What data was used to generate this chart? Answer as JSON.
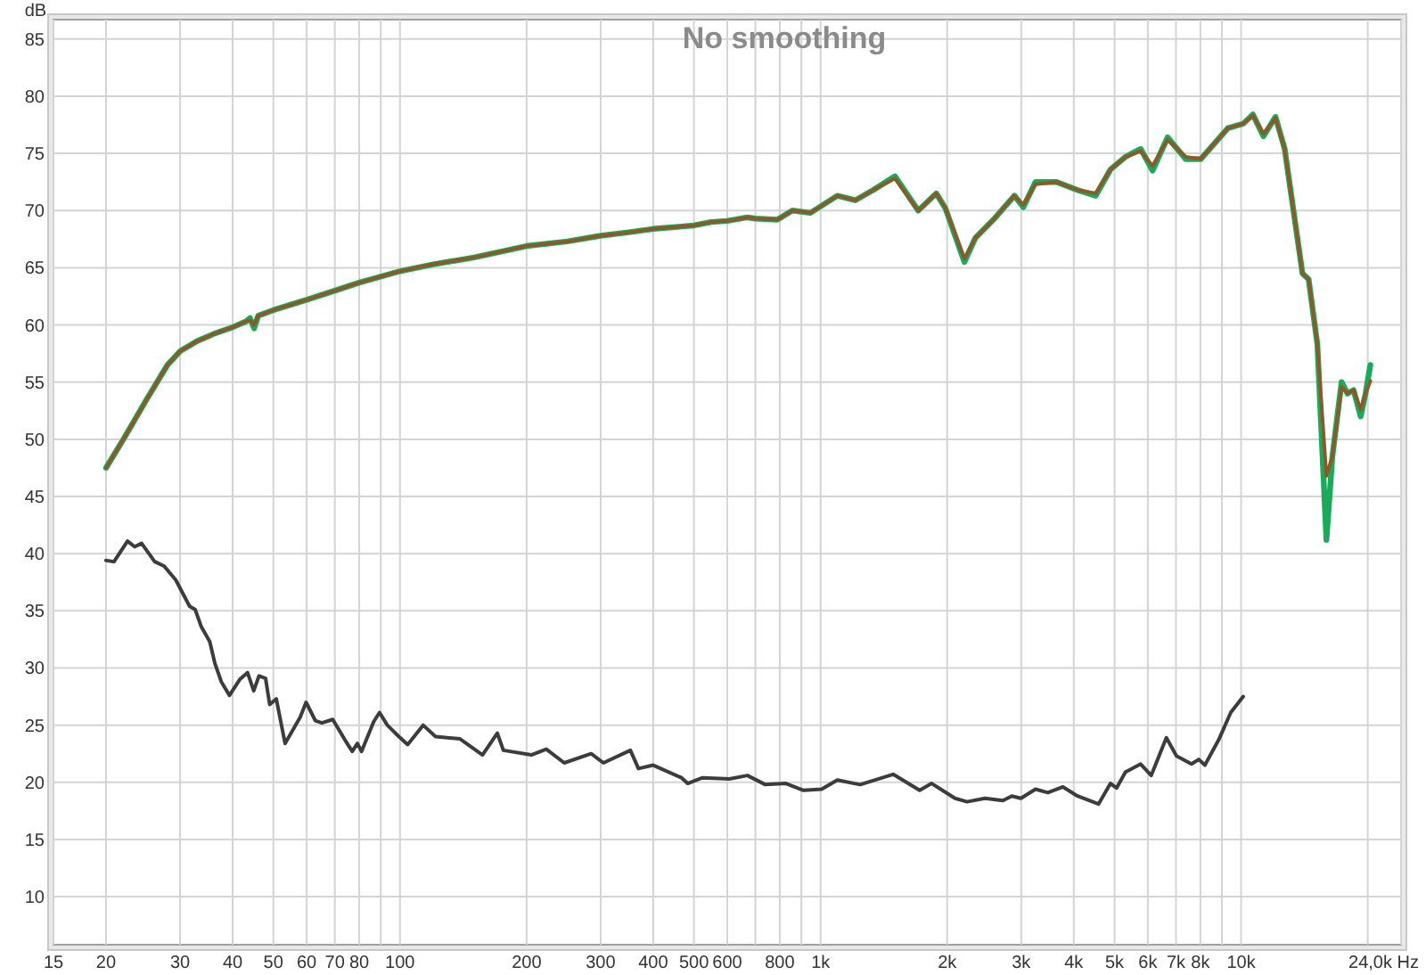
{
  "chart_data": {
    "type": "line",
    "title": "No smoothing",
    "ylabel": "dB",
    "log": "x",
    "grid": true,
    "xlim": [
      15,
      24000
    ],
    "ylim": [
      5.8,
      86.7
    ],
    "xticks": [
      15,
      20,
      30,
      40,
      50,
      60,
      70,
      80,
      {
        "value": 90,
        "label": null
      },
      100,
      200,
      300,
      400,
      500,
      600,
      {
        "value": 700,
        "label": null
      },
      800,
      {
        "value": 900,
        "label": null
      },
      {
        "value": 1000,
        "label": "1k"
      },
      {
        "value": 2000,
        "label": "2k"
      },
      {
        "value": 3000,
        "label": "3k"
      },
      {
        "value": 4000,
        "label": "4k"
      },
      {
        "value": 5000,
        "label": "5k"
      },
      {
        "value": 6000,
        "label": "6k"
      },
      {
        "value": 7000,
        "label": "7k"
      },
      {
        "value": 8000,
        "label": "8k"
      },
      {
        "value": 9000,
        "label": null
      },
      {
        "value": 10000,
        "label": "10k"
      },
      {
        "value": 20000,
        "label": null
      },
      {
        "value": 24000,
        "label": "24,0k Hz"
      }
    ],
    "yticks": [
      10,
      15,
      20,
      25,
      30,
      35,
      40,
      45,
      50,
      55,
      60,
      65,
      70,
      75,
      80,
      85
    ],
    "series": [
      {
        "color": "#1aaa5a",
        "x": [
          20,
          22,
          25,
          28,
          30,
          33,
          36,
          40,
          43,
          44,
          45,
          46,
          50,
          60,
          70,
          80,
          100,
          120,
          150,
          200,
          250,
          300,
          350,
          400,
          500,
          549,
          600,
          670,
          700,
          789,
          857,
          946,
          1096,
          1209,
          1334,
          1503,
          1707,
          1884,
          1981,
          2198,
          2333,
          2575,
          2890,
          3035,
          3244,
          3640,
          4084,
          4508,
          4891,
          5309,
          5768,
          6157,
          6686,
          7381,
          8014,
          9295,
          10115,
          10664,
          11300,
          12070,
          12690,
          13990,
          14470,
          15180,
          15950,
          16480,
          17330,
          17900,
          18510,
          19240,
          19760,
          20290
        ],
        "values": [
          47.5,
          50,
          53.5,
          56.5,
          57.7,
          58.6,
          59.2,
          59.8,
          60.3,
          60.6,
          59.7,
          60.8,
          61.3,
          62.2,
          63,
          63.7,
          64.7,
          65.3,
          65.9,
          66.9,
          67.3,
          67.8,
          68.1,
          68.4,
          68.7,
          69,
          69.1,
          69.4,
          69.3,
          69.2,
          70,
          69.8,
          71.3,
          70.9,
          71.8,
          73,
          70,
          71.5,
          70.2,
          65.5,
          67.6,
          69.2,
          71.3,
          70.3,
          72.5,
          72.5,
          71.8,
          71.3,
          73.6,
          74.7,
          75.4,
          73.5,
          76.4,
          74.5,
          74.5,
          77.2,
          77.6,
          78.4,
          76.5,
          78.2,
          75.4,
          64.5,
          64,
          58.3,
          41.2,
          48.5,
          55,
          54,
          54.3,
          52,
          54,
          56.5
        ]
      },
      {
        "color": "#8b5a2b",
        "x": [
          20,
          22,
          25,
          28,
          30,
          33,
          36,
          40,
          43,
          44,
          45,
          46,
          50,
          60,
          70,
          80,
          100,
          120,
          150,
          200,
          250,
          300,
          350,
          400,
          500,
          549,
          600,
          670,
          700,
          789,
          857,
          946,
          1096,
          1209,
          1334,
          1503,
          1707,
          1884,
          1981,
          2198,
          2333,
          2575,
          2890,
          3035,
          3244,
          3640,
          4084,
          4508,
          4891,
          5309,
          5768,
          6157,
          6686,
          7381,
          8014,
          9295,
          10115,
          10664,
          11300,
          12070,
          12690,
          13990,
          14470,
          15180,
          15950,
          16480,
          17330,
          17900,
          18510,
          19240,
          19760,
          20290
        ],
        "values": [
          47.5,
          50,
          53.5,
          56.5,
          57.7,
          58.6,
          59.2,
          59.8,
          60.3,
          60.4,
          60,
          60.8,
          61.3,
          62.2,
          63,
          63.7,
          64.7,
          65.3,
          65.9,
          66.9,
          67.3,
          67.8,
          68.1,
          68.4,
          68.7,
          69,
          69.1,
          69.4,
          69.3,
          69.2,
          70,
          69.8,
          71.3,
          70.9,
          71.8,
          72.8,
          70,
          71.5,
          70.2,
          65.8,
          67.6,
          69.2,
          71.3,
          70.5,
          72.3,
          72.5,
          71.8,
          71.5,
          73.6,
          74.7,
          75.2,
          73.9,
          76.2,
          74.7,
          74.5,
          77.2,
          77.6,
          78.3,
          76.7,
          78.1,
          75.4,
          64.5,
          64,
          58.3,
          46.8,
          48.5,
          54.6,
          54,
          54.3,
          52.6,
          54,
          55.1
        ]
      },
      {
        "color": "#3c3c3c",
        "x": [
          20,
          20.9,
          22.5,
          23.4,
          24.3,
          26.1,
          27.5,
          29.3,
          31.6,
          32.6,
          33.7,
          35.3,
          36.3,
          37.6,
          39.3,
          41.6,
          43.4,
          44.9,
          46.2,
          47.9,
          49,
          50.8,
          53.3,
          57.9,
          59.8,
          62.9,
          65.2,
          69.2,
          74,
          77,
          79.2,
          81,
          86.6,
          89.4,
          93.3,
          99.4,
          104.3,
          113.5,
          121.5,
          138.9,
          157.1,
          170.4,
          176.1,
          205.2,
          222.8,
          245.8,
          284.7,
          304.6,
          353,
          369,
          400,
          467,
          483,
          524,
          607,
          670,
          739,
          827,
          911,
          1006,
          1096,
          1242,
          1488,
          1720,
          1837,
          2088,
          2230,
          2460,
          2713,
          2850,
          2995,
          3244,
          3470,
          3770,
          4084,
          4580,
          4891,
          5056,
          5309,
          5768,
          6113,
          6640,
          7020,
          7620,
          7930,
          8200,
          8840,
          9447,
          10115
        ],
        "values": [
          39.4,
          39.3,
          41.1,
          40.6,
          40.9,
          39.3,
          38.9,
          37.7,
          35.4,
          35.1,
          33.6,
          32.3,
          30.4,
          28.8,
          27.6,
          29,
          29.6,
          28,
          29.3,
          29.1,
          26.8,
          27.3,
          23.4,
          25.7,
          27,
          25.4,
          25.2,
          25.5,
          23.7,
          22.7,
          23.4,
          22.7,
          25.3,
          26.1,
          25,
          24,
          23.3,
          25,
          24,
          23.8,
          22.4,
          24.3,
          22.8,
          22.4,
          22.9,
          21.7,
          22.5,
          21.7,
          22.8,
          21.2,
          21.5,
          20.4,
          19.9,
          20.4,
          20.3,
          20.6,
          19.8,
          19.9,
          19.3,
          19.4,
          20.2,
          19.8,
          20.7,
          19.3,
          19.9,
          18.6,
          18.3,
          18.6,
          18.4,
          18.8,
          18.6,
          19.4,
          19.1,
          19.6,
          18.8,
          18.1,
          19.9,
          19.5,
          20.9,
          21.6,
          20.6,
          23.9,
          22.3,
          21.6,
          22,
          21.5,
          23.7,
          26.1,
          27.5
        ]
      }
    ]
  }
}
